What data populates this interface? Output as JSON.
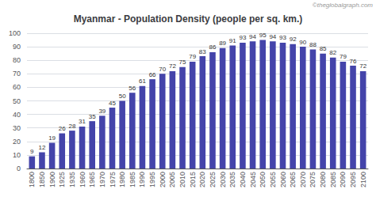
{
  "chart_data": {
    "type": "bar",
    "title": "Myanmar - Population Density (people per sq. km.)",
    "categories": [
      "1800",
      "1850",
      "1900",
      "1925",
      "1935",
      "1960",
      "1965",
      "1970",
      "1975",
      "1980",
      "1985",
      "1990",
      "1995",
      "2000",
      "2005",
      "2010",
      "2015",
      "2020",
      "2025",
      "2030",
      "2035",
      "2040",
      "2045",
      "2050",
      "2055",
      "2060",
      "2065",
      "2070",
      "2075",
      "2080",
      "2085",
      "2090",
      "2095",
      "2100"
    ],
    "values": [
      9,
      12,
      19,
      26,
      28,
      31,
      35,
      39,
      45,
      50,
      56,
      61,
      66,
      70,
      72,
      75,
      79,
      83,
      86,
      89,
      91,
      93,
      94,
      95,
      94,
      93,
      92,
      90,
      88,
      85,
      82,
      79,
      76,
      72
    ],
    "color": "#4444aa",
    "ylim": [
      0,
      100
    ],
    "yticks": [
      0,
      10,
      20,
      30,
      40,
      50,
      60,
      70,
      80,
      90,
      100
    ],
    "grid": true,
    "data_labels": true,
    "annotations": [
      "©theglobalgraph.com"
    ]
  }
}
